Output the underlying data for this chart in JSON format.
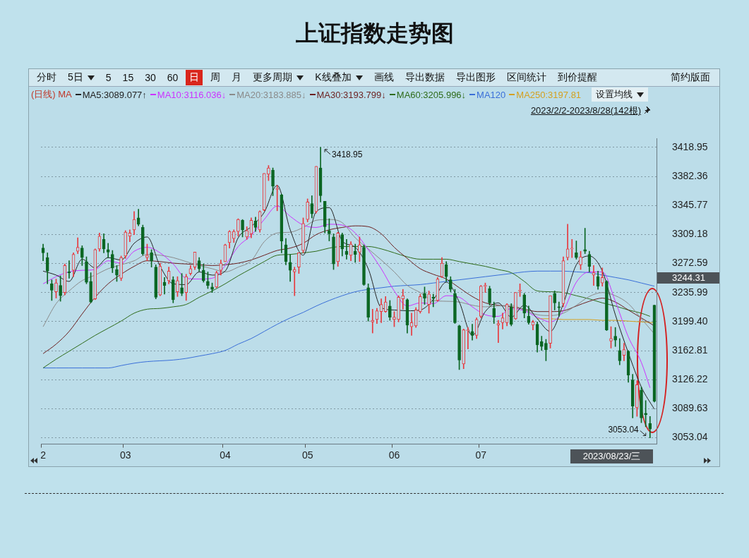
{
  "chart_data": {
    "type": "candlestick",
    "title": "上证指数走势图",
    "legend": "top left",
    "legend_title": "(日线) MA",
    "grid": "y",
    "categories": [
      "2",
      null,
      null,
      null,
      null,
      null,
      null,
      null,
      null,
      null,
      null,
      null,
      null,
      null,
      null,
      null,
      null,
      null,
      null,
      "03",
      null,
      null,
      null,
      null,
      null,
      null,
      null,
      null,
      null,
      null,
      null,
      null,
      null,
      null,
      null,
      null,
      null,
      null,
      null,
      null,
      null,
      null,
      "04",
      null,
      null,
      null,
      null,
      null,
      null,
      null,
      null,
      null,
      null,
      null,
      null,
      null,
      null,
      null,
      null,
      null,
      null,
      "05",
      null,
      null,
      null,
      null,
      null,
      null,
      null,
      null,
      null,
      null,
      null,
      null,
      null,
      null,
      null,
      null,
      null,
      null,
      null,
      "06",
      null,
      null,
      null,
      null,
      null,
      null,
      null,
      null,
      null,
      null,
      null,
      null,
      null,
      null,
      null,
      null,
      null,
      null,
      null,
      "07",
      null,
      null,
      null,
      null,
      null,
      null,
      null,
      null,
      null,
      null,
      null,
      null,
      null,
      null,
      null,
      null,
      null,
      null,
      null,
      null,
      null,
      null,
      null,
      null,
      null,
      null,
      null,
      null,
      null,
      null,
      null,
      null,
      null,
      null,
      null,
      null,
      null,
      null,
      null,
      null
    ],
    "ohlc": [
      [
        3292,
        3297,
        3276,
        3286
      ],
      [
        3280,
        3286,
        3247,
        3263
      ],
      [
        3247,
        3252,
        3226,
        3239
      ],
      [
        3237,
        3253,
        3229,
        3248
      ],
      [
        3245,
        3257,
        3225,
        3232
      ],
      [
        3236,
        3272,
        3233,
        3270
      ],
      [
        3262,
        3276,
        3254,
        3261
      ],
      [
        3264,
        3286,
        3256,
        3284
      ],
      [
        3288,
        3305,
        3285,
        3293
      ],
      [
        3292,
        3295,
        3270,
        3280
      ],
      [
        3275,
        3281,
        3247,
        3249
      ],
      [
        3250,
        3261,
        3223,
        3224
      ],
      [
        3228,
        3291,
        3227,
        3290
      ],
      [
        3291,
        3311,
        3288,
        3307
      ],
      [
        3303,
        3310,
        3286,
        3291
      ],
      [
        3290,
        3298,
        3280,
        3287
      ],
      [
        3284,
        3289,
        3261,
        3267
      ],
      [
        3265,
        3270,
        3250,
        3258
      ],
      [
        3254,
        3282,
        3251,
        3280
      ],
      [
        3282,
        3314,
        3279,
        3312
      ],
      [
        3307,
        3315,
        3300,
        3311
      ],
      [
        3315,
        3338,
        3309,
        3328
      ],
      [
        3330,
        3341,
        3320,
        3322
      ],
      [
        3318,
        3321,
        3283,
        3285
      ],
      [
        3280,
        3297,
        3276,
        3283
      ],
      [
        3286,
        3290,
        3268,
        3276
      ],
      [
        3268,
        3271,
        3228,
        3230
      ],
      [
        3233,
        3273,
        3232,
        3269
      ],
      [
        3249,
        3255,
        3234,
        3245
      ],
      [
        3251,
        3268,
        3247,
        3263
      ],
      [
        3252,
        3256,
        3223,
        3227
      ],
      [
        3237,
        3256,
        3231,
        3251
      ],
      [
        3242,
        3260,
        3232,
        3235
      ],
      [
        3236,
        3259,
        3226,
        3256
      ],
      [
        3260,
        3270,
        3258,
        3266
      ],
      [
        3268,
        3287,
        3265,
        3287
      ],
      [
        3276,
        3280,
        3263,
        3266
      ],
      [
        3264,
        3272,
        3249,
        3251
      ],
      [
        3250,
        3262,
        3241,
        3245
      ],
      [
        3243,
        3248,
        3236,
        3240
      ],
      [
        3243,
        3263,
        3242,
        3261
      ],
      [
        3264,
        3277,
        3258,
        3273
      ],
      [
        3275,
        3297,
        3275,
        3296
      ],
      [
        3299,
        3314,
        3292,
        3313
      ],
      [
        3304,
        3315,
        3299,
        3313
      ],
      [
        3313,
        3329,
        3307,
        3328
      ],
      [
        3327,
        3328,
        3306,
        3315
      ],
      [
        3306,
        3319,
        3303,
        3314
      ],
      [
        3310,
        3330,
        3305,
        3327
      ],
      [
        3326,
        3331,
        3313,
        3318
      ],
      [
        3315,
        3339,
        3312,
        3338
      ],
      [
        3340,
        3386,
        3339,
        3386
      ],
      [
        3385,
        3396,
        3377,
        3393
      ],
      [
        3390,
        3393,
        3358,
        3370
      ],
      [
        3366,
        3371,
        3339,
        3367
      ],
      [
        3359,
        3360,
        3286,
        3301
      ],
      [
        3296,
        3304,
        3271,
        3275
      ],
      [
        3274,
        3284,
        3250,
        3264
      ],
      [
        3262,
        3268,
        3232,
        3265
      ],
      [
        3268,
        3286,
        3260,
        3286
      ],
      [
        3289,
        3330,
        3286,
        3323
      ],
      [
        3328,
        3354,
        3325,
        3350
      ],
      [
        3348,
        3358,
        3330,
        3335
      ],
      [
        3338,
        3395,
        3336,
        3395
      ],
      [
        3393,
        3418.95,
        3350,
        3358
      ],
      [
        3351,
        3351,
        3311,
        3319
      ],
      [
        3314,
        3329,
        3301,
        3310
      ],
      [
        3306,
        3310,
        3265,
        3272
      ],
      [
        3275,
        3312,
        3269,
        3311
      ],
      [
        3309,
        3311,
        3282,
        3291
      ],
      [
        3288,
        3303,
        3278,
        3284
      ],
      [
        3283,
        3300,
        3276,
        3297
      ],
      [
        3288,
        3297,
        3274,
        3284
      ],
      [
        3287,
        3306,
        3275,
        3296
      ],
      [
        3293,
        3296,
        3245,
        3246
      ],
      [
        3242,
        3247,
        3200,
        3205
      ],
      [
        3199,
        3215,
        3185,
        3201
      ],
      [
        3202,
        3216,
        3197,
        3213
      ],
      [
        3212,
        3228,
        3198,
        3221
      ],
      [
        3212,
        3231,
        3211,
        3224
      ],
      [
        3219,
        3226,
        3201,
        3205
      ],
      [
        3202,
        3212,
        3193,
        3205
      ],
      [
        3202,
        3232,
        3199,
        3230
      ],
      [
        3228,
        3240,
        3215,
        3232
      ],
      [
        3227,
        3228,
        3185,
        3195
      ],
      [
        3193,
        3210,
        3182,
        3198
      ],
      [
        3194,
        3217,
        3192,
        3214
      ],
      [
        3212,
        3234,
        3210,
        3231
      ],
      [
        3235,
        3243,
        3221,
        3229
      ],
      [
        3221,
        3238,
        3210,
        3234
      ],
      [
        3230,
        3234,
        3218,
        3229
      ],
      [
        3226,
        3255,
        3225,
        3253
      ],
      [
        3256,
        3280,
        3255,
        3273
      ],
      [
        3271,
        3275,
        3250,
        3256
      ],
      [
        3252,
        3256,
        3237,
        3240
      ],
      [
        3235,
        3240,
        3197,
        3198
      ],
      [
        3194,
        3195,
        3139,
        3151
      ],
      [
        3146,
        3190,
        3140,
        3189
      ],
      [
        3188,
        3192,
        3165,
        3189
      ],
      [
        3187,
        3196,
        3176,
        3182
      ],
      [
        3182,
        3204,
        3178,
        3202
      ],
      [
        3206,
        3245,
        3204,
        3244
      ],
      [
        3244,
        3248,
        3236,
        3245
      ],
      [
        3241,
        3244,
        3220,
        3223
      ],
      [
        3216,
        3224,
        3197,
        3205
      ],
      [
        3195,
        3201,
        3173,
        3197
      ],
      [
        3198,
        3210,
        3190,
        3204
      ],
      [
        3198,
        3222,
        3194,
        3221
      ],
      [
        3218,
        3222,
        3194,
        3196
      ],
      [
        3203,
        3236,
        3202,
        3236
      ],
      [
        3238,
        3247,
        3231,
        3238
      ],
      [
        3233,
        3235,
        3204,
        3210
      ],
      [
        3206,
        3219,
        3196,
        3198
      ],
      [
        3195,
        3201,
        3189,
        3199
      ],
      [
        3196,
        3199,
        3161,
        3170
      ],
      [
        3174,
        3181,
        3163,
        3168
      ],
      [
        3172,
        3177,
        3150,
        3164
      ],
      [
        3172,
        3232,
        3166,
        3232
      ],
      [
        3235,
        3238,
        3214,
        3223
      ],
      [
        3218,
        3224,
        3206,
        3217
      ],
      [
        3222,
        3281,
        3218,
        3276
      ],
      [
        3280,
        3322,
        3277,
        3291
      ],
      [
        3291,
        3303,
        3280,
        3291
      ],
      [
        3286,
        3301,
        3278,
        3280
      ],
      [
        3271,
        3288,
        3265,
        3281
      ],
      [
        3290,
        3317,
        3285,
        3288
      ],
      [
        3284,
        3288,
        3262,
        3269
      ],
      [
        3258,
        3270,
        3245,
        3261
      ],
      [
        3256,
        3263,
        3240,
        3244
      ],
      [
        3248,
        3267,
        3244,
        3255
      ],
      [
        3250,
        3251,
        3188,
        3189
      ],
      [
        3175,
        3193,
        3166,
        3178
      ],
      [
        3181,
        3192,
        3168,
        3176
      ],
      [
        3163,
        3178,
        3145,
        3150
      ],
      [
        3157,
        3172,
        3150,
        3164
      ],
      [
        3162,
        3163,
        3123,
        3132
      ],
      [
        3126,
        3133,
        3078,
        3093
      ],
      [
        3091,
        3125,
        3080,
        3120
      ],
      [
        3113,
        3117,
        3072,
        3078
      ],
      [
        3084,
        3100,
        3067,
        3082
      ],
      [
        3071,
        3080,
        3053.04,
        3064
      ],
      [
        3220,
        3220,
        3098,
        3099
      ]
    ],
    "colors": [
      "#0b6623",
      "#0b6623",
      "#0b6623",
      "#e8383d",
      "#0b6623",
      "#e8383d",
      "#0b6623",
      "#e8383d",
      "#e8383d",
      "#0b6623",
      "#0b6623",
      "#0b6623",
      "#e8383d",
      "#e8383d",
      "#0b6623",
      "#0b6623",
      "#0b6623",
      "#0b6623",
      "#e8383d",
      "#e8383d",
      "#e8383d",
      "#e8383d",
      "#0b6623",
      "#0b6623",
      "#e8383d",
      "#0b6623",
      "#0b6623",
      "#e8383d",
      "#0b6623",
      "#e8383d",
      "#0b6623",
      "#e8383d",
      "#0b6623",
      "#e8383d",
      "#e8383d",
      "#e8383d",
      "#0b6623",
      "#0b6623",
      "#0b6623",
      "#0b6623",
      "#e8383d",
      "#e8383d",
      "#e8383d",
      "#e8383d",
      "#e8383d",
      "#e8383d",
      "#0b6623",
      "#e8383d",
      "#e8383d",
      "#0b6623",
      "#e8383d",
      "#e8383d",
      "#e8383d",
      "#0b6623",
      "#e8383d",
      "#0b6623",
      "#0b6623",
      "#0b6623",
      "#e8383d",
      "#e8383d",
      "#e8383d",
      "#e8383d",
      "#0b6623",
      "#e8383d",
      "#0b6623",
      "#0b6623",
      "#0b6623",
      "#0b6623",
      "#e8383d",
      "#0b6623",
      "#0b6623",
      "#e8383d",
      "#0b6623",
      "#e8383d",
      "#0b6623",
      "#0b6623",
      "#e8383d",
      "#e8383d",
      "#e8383d",
      "#e8383d",
      "#0b6623",
      "#e8383d",
      "#e8383d",
      "#e8383d",
      "#0b6623",
      "#e8383d",
      "#e8383d",
      "#e8383d",
      "#0b6623",
      "#e8383d",
      "#0b6623",
      "#e8383d",
      "#e8383d",
      "#0b6623",
      "#0b6623",
      "#0b6623",
      "#0b6623",
      "#e8383d",
      "#e8383d",
      "#0b6623",
      "#e8383d",
      "#e8383d",
      "#e8383d",
      "#0b6623",
      "#0b6623",
      "#e8383d",
      "#e8383d",
      "#e8383d",
      "#0b6623",
      "#e8383d",
      "#e8383d",
      "#0b6623",
      "#0b6623",
      "#e8383d",
      "#0b6623",
      "#0b6623",
      "#0b6623",
      "#e8383d",
      "#0b6623",
      "#0b6623",
      "#e8383d",
      "#e8383d",
      "#e8383d",
      "#0b6623",
      "#e8383d",
      "#0b6623",
      "#0b6623",
      "#e8383d",
      "#0b6623",
      "#e8383d",
      "#0b6623",
      "#e8383d",
      "#0b6623",
      "#0b6623",
      "#e8383d",
      "#0b6623",
      "#0b6623",
      "#e8383d",
      "#0b6623",
      "#0b6623",
      "#0b6623",
      "#0b6623"
    ],
    "series": [
      {
        "type": "line",
        "name": "MA5:3089.077↑",
        "color": "#222222",
        "values": [
          3263,
          null,
          null,
          3258,
          null,
          null,
          3250,
          null,
          null,
          3278,
          null,
          null,
          3267,
          null,
          null,
          3280,
          null,
          null,
          3277,
          null,
          null,
          3298,
          null,
          null,
          3306,
          null,
          null,
          3269,
          null,
          null,
          3247,
          null,
          null,
          3246,
          null,
          null,
          3262,
          null,
          null,
          3258,
          null,
          null,
          3263,
          null,
          null,
          3305,
          null,
          null,
          3319,
          null,
          null,
          3337,
          null,
          null,
          3371,
          null,
          null,
          3315,
          null,
          null,
          3283,
          null,
          null,
          3338,
          null,
          null,
          3343,
          null,
          null,
          3301,
          null,
          null,
          3293,
          null,
          null,
          3266,
          null,
          null,
          3217,
          null,
          null,
          3214,
          null,
          null,
          3213,
          null,
          null,
          3214,
          null,
          null,
          3227,
          null,
          null,
          3249,
          null,
          null,
          3224,
          null,
          null,
          3182,
          null,
          null,
          3212,
          null,
          null,
          3223,
          null,
          null,
          3205,
          null,
          null,
          3220,
          null,
          null,
          3203,
          null,
          null,
          3187,
          null,
          null,
          3222,
          null,
          null,
          3271,
          null,
          null,
          3282,
          null,
          null,
          3263,
          null,
          null,
          3208,
          null,
          null,
          3160,
          null,
          null,
          3117,
          null,
          null,
          3089
        ]
      },
      {
        "type": "line",
        "name": "MA10:3116.036↓",
        "color": "#cc33ff",
        "values": [
          3247,
          null,
          null,
          3256,
          null,
          null,
          3262,
          null,
          null,
          3264,
          null,
          null,
          3265,
          null,
          null,
          3276,
          null,
          null,
          3273,
          null,
          null,
          3288,
          null,
          null,
          3293,
          null,
          null,
          3286,
          null,
          null,
          3272,
          null,
          null,
          3254,
          null,
          null,
          3253,
          null,
          null,
          3254,
          null,
          null,
          3270,
          null,
          null,
          3294,
          null,
          null,
          3308,
          null,
          null,
          3328,
          null,
          null,
          3345,
          null,
          null,
          3332,
          null,
          null,
          3321,
          null,
          null,
          3318,
          null,
          null,
          3322,
          null,
          null,
          3321,
          null,
          null,
          3311,
          null,
          null,
          3290,
          null,
          null,
          3266,
          null,
          null,
          3238,
          null,
          null,
          3219,
          null,
          null,
          3223,
          null,
          null,
          3222,
          null,
          null,
          3232,
          null,
          null,
          3230,
          null,
          null,
          3218,
          null,
          null,
          3208,
          null,
          null,
          3206,
          null,
          null,
          3216,
          null,
          null,
          3213,
          null,
          null,
          3205,
          null,
          null,
          3199,
          null,
          null,
          3213,
          null,
          null,
          3249,
          null,
          null,
          3262,
          null,
          null,
          3262,
          null,
          null,
          3225,
          null,
          null,
          3180,
          null,
          null,
          3148,
          null,
          3116,
          null
        ]
      },
      {
        "type": "line",
        "name": "MA20:3183.885↓",
        "color": "#8a8a8a",
        "values": [
          3193,
          null,
          null,
          3222,
          null,
          null,
          3238,
          null,
          null,
          3251,
          null,
          null,
          3258,
          null,
          null,
          3266,
          null,
          null,
          3271,
          null,
          null,
          3276,
          null,
          null,
          3284,
          null,
          null,
          3283,
          null,
          null,
          3280,
          null,
          null,
          3275,
          null,
          null,
          3270,
          null,
          null,
          3266,
          null,
          null,
          3262,
          null,
          null,
          3268,
          null,
          null,
          3276,
          null,
          null,
          3300,
          null,
          null,
          3311,
          null,
          null,
          3312,
          null,
          null,
          3318,
          null,
          null,
          3327,
          null,
          null,
          3328,
          null,
          null,
          3324,
          null,
          null,
          3305,
          null,
          null,
          3291,
          null,
          null,
          3277,
          null,
          null,
          3262,
          null,
          null,
          3245,
          null,
          null,
          3236,
          null,
          null,
          3226,
          null,
          null,
          3225,
          null,
          null,
          3224,
          null,
          null,
          3220,
          null,
          null,
          3218,
          null,
          null,
          3219,
          null,
          null,
          3220,
          null,
          null,
          3214,
          null,
          null,
          3208,
          null,
          null,
          3207,
          null,
          null,
          3210,
          null,
          null,
          3220,
          null,
          null,
          3231,
          null,
          null,
          3236,
          null,
          null,
          3232,
          null,
          null,
          3222,
          null,
          null,
          3203,
          null,
          null,
          3184
        ]
      },
      {
        "type": "line",
        "name": "MA30:3193.799↓",
        "color": "#6b1f1f",
        "values": [
          3159,
          null,
          null,
          3171,
          null,
          null,
          3187,
          null,
          null,
          3209,
          null,
          null,
          3230,
          null,
          null,
          3247,
          null,
          null,
          3259,
          null,
          null,
          3269,
          null,
          null,
          3276,
          null,
          null,
          3275,
          null,
          null,
          3273,
          null,
          null,
          3272,
          null,
          null,
          3271,
          null,
          null,
          3270,
          null,
          null,
          3271,
          null,
          null,
          3273,
          null,
          null,
          3277,
          null,
          null,
          3283,
          null,
          null,
          3289,
          null,
          null,
          3292,
          null,
          null,
          3298,
          null,
          null,
          3309,
          null,
          null,
          3315,
          null,
          null,
          3318,
          null,
          null,
          3320,
          null,
          null,
          3319,
          null,
          null,
          3310,
          null,
          null,
          3293,
          null,
          null,
          3279,
          null,
          null,
          3266,
          null,
          null,
          3259,
          null,
          null,
          3253,
          null,
          null,
          3242,
          null,
          null,
          3231,
          null,
          null,
          3223,
          null,
          null,
          3220,
          null,
          null,
          3218,
          null,
          null,
          3215,
          null,
          null,
          3212,
          null,
          null,
          3212,
          null,
          null,
          3213,
          null,
          null,
          3219,
          null,
          null,
          3225,
          null,
          null,
          3229,
          null,
          null,
          3224,
          null,
          null,
          3214,
          null,
          null,
          3204,
          null,
          null,
          3194
        ]
      },
      {
        "type": "line",
        "name": "MA60:3205.996↓",
        "color": "#2e6b1a",
        "values": [
          3141,
          null,
          null,
          3152,
          null,
          null,
          3162,
          null,
          null,
          3172,
          null,
          null,
          3182,
          null,
          null,
          3191,
          null,
          null,
          3200,
          null,
          null,
          3210,
          null,
          null,
          3215,
          null,
          null,
          3216,
          null,
          null,
          3218,
          null,
          null,
          3221,
          null,
          null,
          3230,
          null,
          null,
          3238,
          null,
          null,
          3247,
          null,
          null,
          3257,
          null,
          null,
          3266,
          null,
          null,
          3275,
          null,
          null,
          3283,
          null,
          null,
          3284,
          null,
          null,
          3286,
          null,
          null,
          3288,
          null,
          null,
          3292,
          null,
          null,
          3294,
          null,
          null,
          3294,
          null,
          null,
          3294,
          null,
          null,
          3291,
          null,
          null,
          3286,
          null,
          null,
          3281,
          null,
          null,
          3278,
          null,
          null,
          3278,
          null,
          null,
          3278,
          null,
          null,
          3275,
          null,
          null,
          3272,
          null,
          null,
          3269,
          null,
          null,
          3265,
          null,
          null,
          3261,
          null,
          null,
          3250,
          null,
          null,
          3238,
          null,
          null,
          3237,
          null,
          null,
          3236,
          null,
          null,
          3232,
          null,
          null,
          3228,
          null,
          null,
          3223,
          null,
          null,
          3219,
          null,
          null,
          3214,
          null,
          null,
          3210,
          null,
          3206,
          null
        ]
      },
      {
        "type": "line",
        "name": "MA120",
        "color": "#3a6fd8",
        "values": [
          3141,
          null,
          null,
          3141,
          null,
          null,
          3141,
          null,
          null,
          3141,
          null,
          null,
          3141,
          null,
          null,
          3141,
          null,
          null,
          3144,
          null,
          null,
          3147,
          null,
          null,
          3149,
          null,
          null,
          3150,
          null,
          null,
          3151,
          null,
          null,
          3153,
          null,
          null,
          3156,
          null,
          null,
          3159,
          null,
          null,
          3163,
          null,
          null,
          3171,
          null,
          null,
          3178,
          null,
          null,
          3187,
          null,
          null,
          3196,
          null,
          null,
          3204,
          null,
          null,
          3211,
          null,
          null,
          3219,
          null,
          null,
          3226,
          null,
          null,
          3232,
          null,
          null,
          3237,
          null,
          null,
          3240,
          null,
          null,
          3242,
          null,
          null,
          3244,
          null,
          null,
          3245,
          null,
          null,
          3246,
          null,
          null,
          3248,
          null,
          null,
          3250,
          null,
          null,
          3252,
          null,
          null,
          3254,
          null,
          null,
          3256,
          null,
          null,
          3258,
          null,
          null,
          3260,
          null,
          null,
          3262,
          null,
          null,
          3263,
          null,
          null,
          3263,
          null,
          null,
          3263,
          null,
          null,
          3262,
          null,
          null,
          3261,
          null,
          null,
          3258,
          null,
          null,
          3255,
          null,
          null,
          3252,
          null,
          null,
          3248,
          null,
          null,
          3244
        ]
      },
      {
        "type": "line",
        "name": "MA250:3197.81",
        "color": "#d4a020",
        "values": [
          null,
          null,
          null,
          null,
          null,
          null,
          null,
          null,
          null,
          null,
          null,
          null,
          null,
          null,
          null,
          null,
          null,
          null,
          null,
          null,
          null,
          null,
          null,
          null,
          null,
          null,
          null,
          null,
          null,
          null,
          null,
          null,
          null,
          null,
          null,
          null,
          null,
          null,
          null,
          null,
          null,
          null,
          null,
          null,
          null,
          null,
          null,
          null,
          null,
          null,
          null,
          null,
          null,
          null,
          null,
          null,
          null,
          null,
          null,
          null,
          null,
          null,
          null,
          null,
          null,
          null,
          null,
          null,
          null,
          null,
          null,
          null,
          null,
          null,
          null,
          null,
          null,
          null,
          null,
          null,
          null,
          null,
          null,
          null,
          null,
          null,
          null,
          null,
          null,
          null,
          null,
          null,
          null,
          null,
          null,
          null,
          null,
          null,
          null,
          null,
          null,
          null,
          null,
          null,
          null,
          null,
          null,
          null,
          null,
          null,
          null,
          null,
          null,
          null,
          3203,
          null,
          null,
          3203,
          null,
          null,
          3202,
          null,
          null,
          3202,
          null,
          null,
          3202,
          null,
          null,
          3201,
          null,
          null,
          3201,
          null,
          null,
          3200,
          null,
          null,
          3199,
          null,
          null,
          3198
        ]
      }
    ],
    "ylim": [
      3045,
      3430
    ],
    "yticks": [
      3053.04,
      3089.63,
      3126.22,
      3162.81,
      {
        "value": 3199.4,
        "label": "3199.40"
      },
      3235.99,
      3272.59,
      3309.18,
      3345.77,
      3382.36,
      3418.95
    ],
    "annotations": [
      "分时",
      "5日",
      "5",
      "15",
      "30",
      "60",
      "日",
      "周",
      "月",
      "更多周期",
      "K线叠加",
      "画线",
      "导出数据",
      "导出图形",
      "区间统计",
      "到价提醒",
      "简约版面",
      "设置均线",
      "2023/2/2-2023/8/28(142根)",
      "3418.95",
      "3053.04",
      "3244.31",
      "2023/08/23/三"
    ]
  }
}
